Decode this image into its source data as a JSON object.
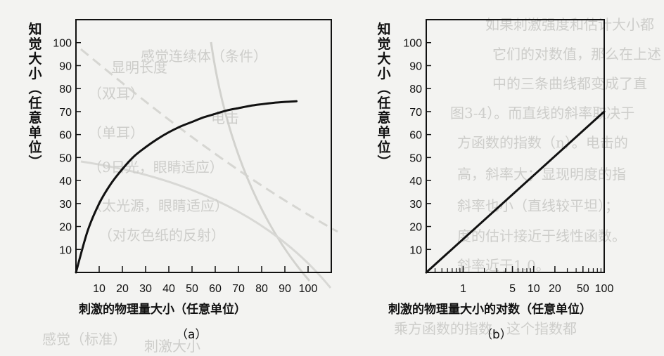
{
  "background_text": {
    "left": [
      "显明长度",
      "感觉连续体（条件）",
      "电击",
      "（双耳）",
      "（单耳）",
      "（9日光，眼睛适应）",
      "（太光源，眼睛适应）",
      "（对灰色纸的反射）"
    ],
    "right": [
      "如果刺激强度和估计大小都",
      "它们的对数值，那么在上述",
      "中的三条曲线都变成了直",
      "图3-4）。而直线的斜率取决于",
      "方函数的指数（n）。电击的",
      "高，斜率大；显现明度的指",
      "斜率也小（直线较平坦）；",
      "度的估计接近于线性函数。",
      "斜率近于1.0。",
      "乘方函数的指数。这个指数都"
    ],
    "bottom": [
      "感觉（标准）",
      "刺激大小"
    ],
    "colors": {
      "ghost": "#c9c9c6"
    }
  },
  "chart_data": [
    {
      "type": "line",
      "caption": "（a）",
      "xlabel": "刺激的物理量大小（任意单位）",
      "ylabel": "知觉大小（任意单位）",
      "xlim": [
        0,
        110
      ],
      "ylim": [
        0,
        110
      ],
      "x_ticks": [
        10,
        20,
        30,
        40,
        50,
        60,
        70,
        80,
        90,
        100
      ],
      "y_ticks": [
        10,
        20,
        30,
        40,
        50,
        60,
        70,
        80,
        90,
        100
      ],
      "grid": false,
      "series": [
        {
          "x": [
            0,
            5,
            10,
            15,
            20,
            25,
            30,
            35,
            40,
            45,
            50,
            55,
            60,
            65,
            70,
            75,
            80,
            85,
            90,
            95
          ],
          "y": [
            0,
            18,
            30,
            38.5,
            45,
            50.5,
            54.5,
            58,
            61,
            63.5,
            65.5,
            67.5,
            69,
            70.5,
            71.5,
            72.5,
            73.2,
            73.8,
            74.2,
            74.5
          ]
        }
      ],
      "color": "#111111"
    },
    {
      "type": "line",
      "caption": "（b）",
      "xlabel": "刺激的物理量大小的对数（任意单位）",
      "ylabel": "知觉大小（任意单位）",
      "x_scale": "log",
      "xlim": [
        0.3,
        100
      ],
      "ylim": [
        0,
        110
      ],
      "x_ticks": [
        1,
        5,
        10,
        20,
        50,
        100
      ],
      "x_tick_labels": [
        "1",
        "5",
        "10",
        "20",
        "50",
        "100"
      ],
      "y_ticks": [
        10,
        20,
        30,
        40,
        50,
        60,
        70,
        80,
        90,
        100
      ],
      "grid": false,
      "series": [
        {
          "x": [
            0.3,
            100
          ],
          "y": [
            0,
            70
          ]
        }
      ],
      "color": "#111111"
    }
  ]
}
